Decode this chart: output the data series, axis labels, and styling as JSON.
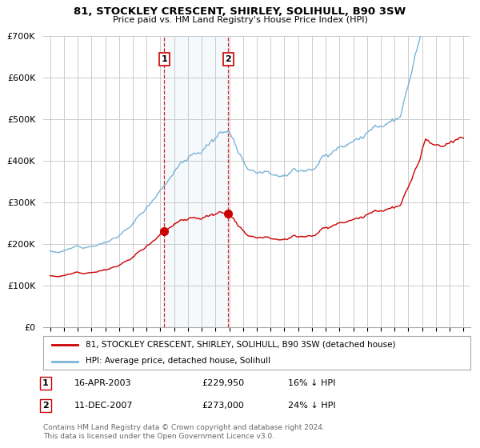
{
  "title": "81, STOCKLEY CRESCENT, SHIRLEY, SOLIHULL, B90 3SW",
  "subtitle": "Price paid vs. HM Land Registry's House Price Index (HPI)",
  "legend_entry1": "81, STOCKLEY CRESCENT, SHIRLEY, SOLIHULL, B90 3SW (detached house)",
  "legend_entry2": "HPI: Average price, detached house, Solihull",
  "annotation1_date": "16-APR-2003",
  "annotation1_price": "£229,950",
  "annotation1_hpi": "16% ↓ HPI",
  "annotation2_date": "11-DEC-2007",
  "annotation2_price": "£273,000",
  "annotation2_hpi": "24% ↓ HPI",
  "footer1": "Contains HM Land Registry data © Crown copyright and database right 2024.",
  "footer2": "This data is licensed under the Open Government Licence v3.0.",
  "hpi_color": "#7ab4d8",
  "paid_color": "#cc0000",
  "vline_color": "#cc0000",
  "background_color": "#ffffff",
  "grid_color": "#cccccc",
  "sale1_year": 2003.29,
  "sale1_price": 229950,
  "sale2_year": 2007.92,
  "sale2_price": 273000,
  "ylim_min": 0,
  "ylim_max": 700000,
  "xlim_min": 1994.5,
  "xlim_max": 2025.5,
  "yticks": [
    0,
    100000,
    200000,
    300000,
    400000,
    500000,
    600000,
    700000
  ],
  "ytick_labels": [
    "£0",
    "£100K",
    "£200K",
    "£300K",
    "£400K",
    "£500K",
    "£600K",
    "£700K"
  ],
  "xticks": [
    1995,
    1996,
    1997,
    1998,
    1999,
    2000,
    2001,
    2002,
    2003,
    2004,
    2005,
    2006,
    2007,
    2008,
    2009,
    2010,
    2011,
    2012,
    2013,
    2014,
    2015,
    2016,
    2017,
    2018,
    2019,
    2020,
    2021,
    2022,
    2023,
    2024,
    2025
  ]
}
